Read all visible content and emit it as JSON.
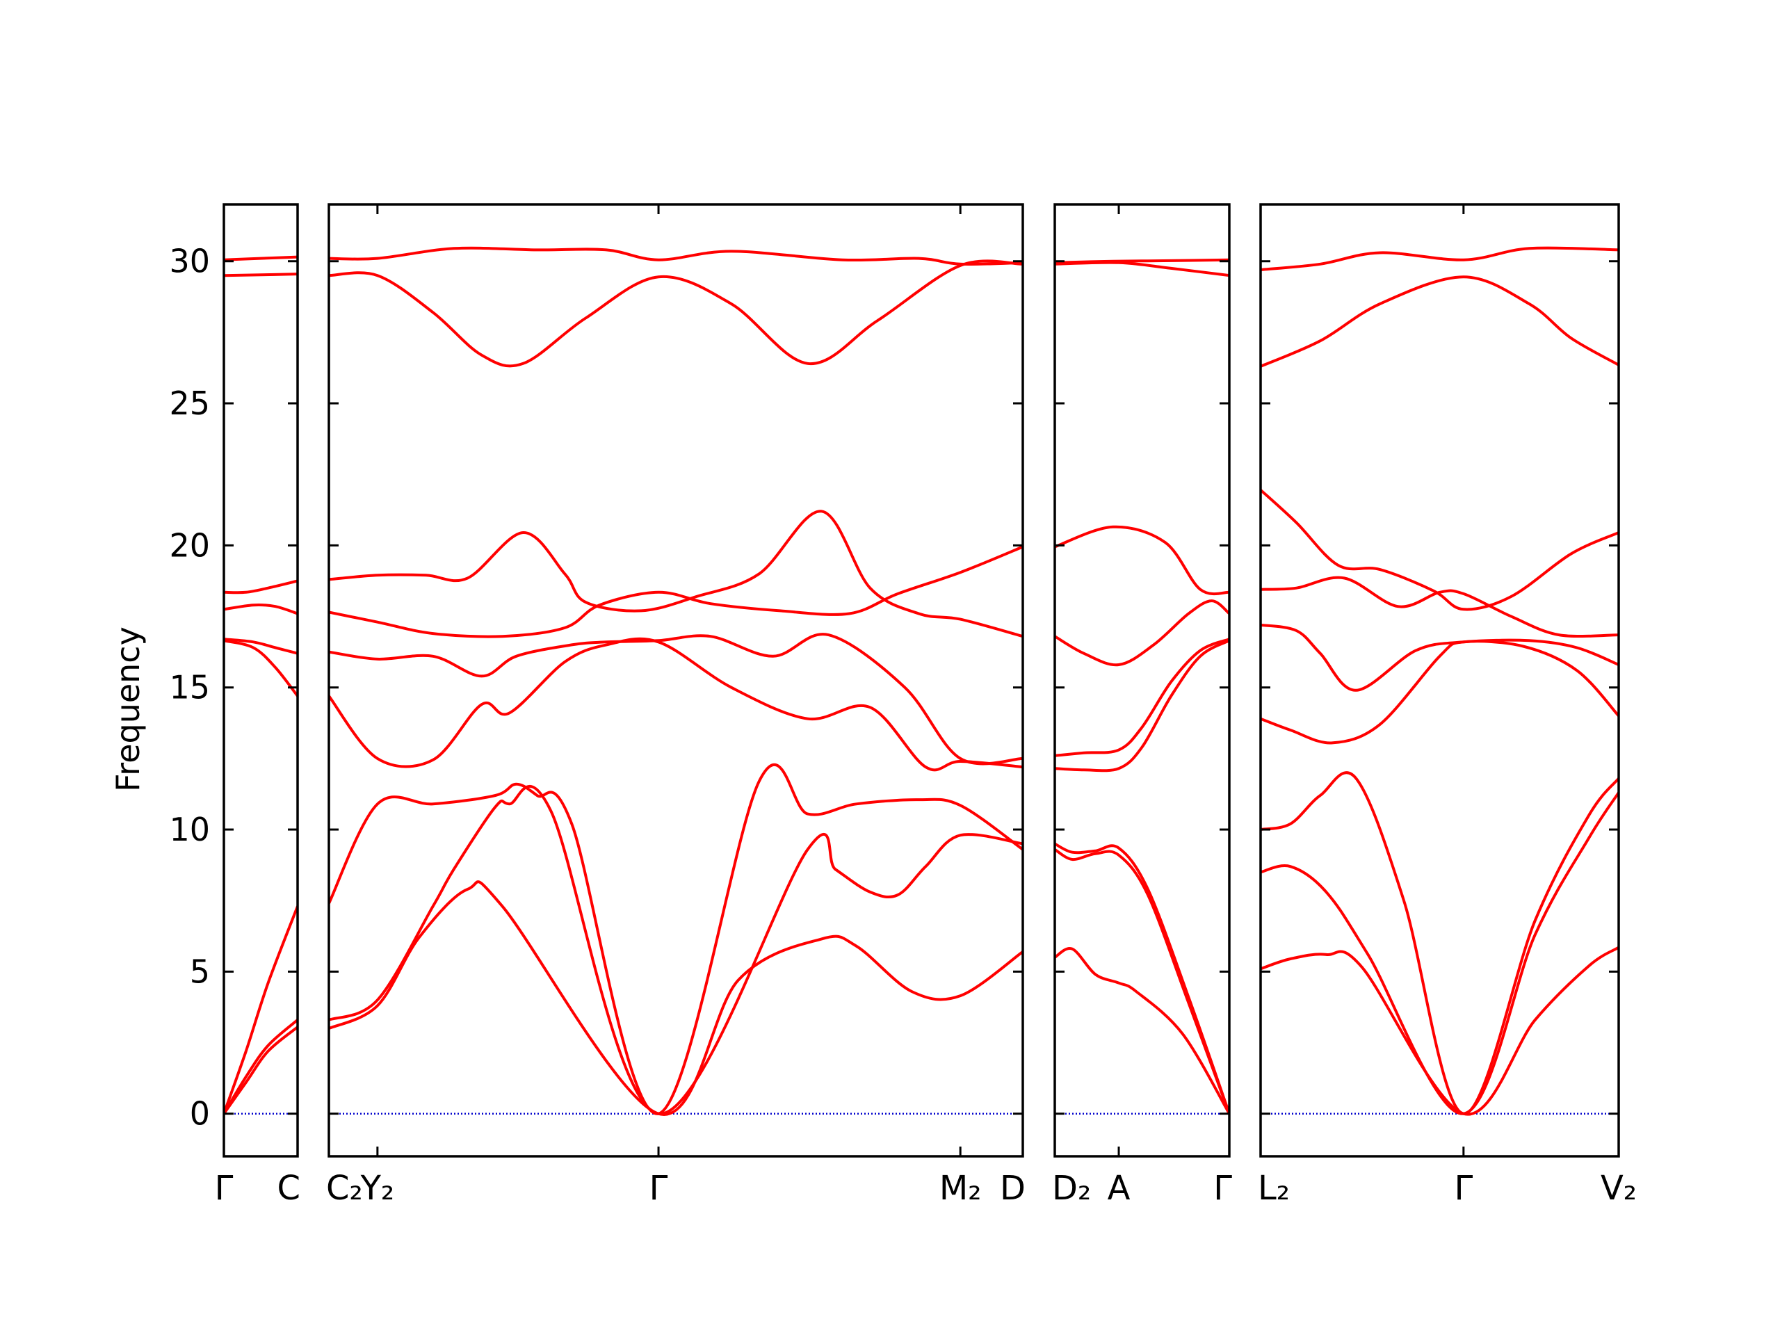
{
  "colors": {
    "band": "#ff0000",
    "zero_line": "#0000cc",
    "axes": "#000000"
  },
  "chart_data": {
    "type": "line",
    "title": "",
    "xlabel": "",
    "ylabel": "Frequency",
    "ylim": [
      -1.5,
      32
    ],
    "yticks": [
      0,
      5,
      10,
      15,
      20,
      25,
      30
    ],
    "grid": false,
    "legend": "none",
    "segments": [
      {
        "xlim": [
          0,
          1
        ],
        "kpoints": [
          {
            "x": 0,
            "label": "Γ"
          },
          {
            "x": 1,
            "label": "C"
          }
        ],
        "series": [
          {
            "x": [
              0,
              0.5,
              1
            ],
            "y": [
              30.05,
              30.1,
              30.15
            ]
          },
          {
            "x": [
              0,
              0.5,
              1
            ],
            "y": [
              29.5,
              29.52,
              29.55
            ]
          },
          {
            "x": [
              0,
              0.3,
              0.6,
              1
            ],
            "y": [
              18.35,
              18.35,
              18.5,
              18.75
            ]
          },
          {
            "x": [
              0,
              0.4,
              0.7,
              1
            ],
            "y": [
              17.75,
              17.9,
              17.85,
              17.6
            ]
          },
          {
            "x": [
              0,
              0.4,
              0.7,
              1
            ],
            "y": [
              16.7,
              16.6,
              16.4,
              16.2
            ]
          },
          {
            "x": [
              0,
              0.4,
              0.7,
              1
            ],
            "y": [
              16.65,
              16.4,
              15.7,
              14.7
            ]
          },
          {
            "x": [
              0,
              0.3,
              0.6,
              1
            ],
            "y": [
              0,
              2.2,
              4.6,
              7.3
            ]
          },
          {
            "x": [
              0,
              0.3,
              0.6,
              1
            ],
            "y": [
              0,
              1.3,
              2.4,
              3.3
            ]
          },
          {
            "x": [
              0,
              0.3,
              0.6,
              1
            ],
            "y": [
              0,
              1.1,
              2.2,
              3.05
            ]
          }
        ]
      },
      {
        "xlim": [
          0,
          10
        ],
        "kpoints": [
          {
            "x": 0,
            "label": "C₂"
          },
          {
            "x": 0.7,
            "label": "Y₂"
          },
          {
            "x": 4.75,
            "label": "Γ"
          },
          {
            "x": 9.1,
            "label": "M₂"
          },
          {
            "x": 10,
            "label": "D"
          }
        ],
        "series": [
          {
            "x": [
              0,
              0.7,
              1.8,
              3,
              4,
              4.75,
              5.8,
              7.4,
              8.5,
              9.1,
              10
            ],
            "y": [
              30.1,
              30.1,
              30.45,
              30.4,
              30.4,
              30.05,
              30.35,
              30.05,
              30.1,
              29.9,
              29.95
            ]
          },
          {
            "x": [
              0,
              0.7,
              1.5,
              2.2,
              2.8,
              3.7,
              4.75,
              5.8,
              6.9,
              7.9,
              9.1,
              10
            ],
            "y": [
              29.5,
              29.5,
              28.2,
              26.7,
              26.4,
              28,
              29.45,
              28.5,
              26.4,
              27.9,
              29.85,
              29.9
            ]
          },
          {
            "x": [
              0,
              0.7,
              1.4,
              2,
              2.8,
              3.4,
              3.7,
              4.5,
              5.3,
              6.2,
              7.1,
              7.8,
              8.5,
              9.1,
              10
            ],
            "y": [
              18.8,
              18.95,
              18.95,
              18.85,
              20.45,
              19,
              18,
              17.7,
              18.2,
              19,
              21.2,
              18.5,
              17.6,
              17.4,
              16.8
            ]
          },
          {
            "x": [
              0,
              0.7,
              1.5,
              2.5,
              3.4,
              3.9,
              4.75,
              5.5,
              6.5,
              7.5,
              8.2,
              9.1,
              10
            ],
            "y": [
              17.65,
              17.3,
              16.9,
              16.8,
              17.1,
              17.9,
              18.35,
              17.95,
              17.7,
              17.6,
              18.3,
              19.05,
              19.95
            ]
          },
          {
            "x": [
              0,
              0.7,
              1.5,
              2.2,
              2.7,
              3.5,
              4,
              4.75,
              5.5,
              6.4,
              7.2,
              8.3,
              9.1,
              10
            ],
            "y": [
              16.25,
              16,
              16.1,
              15.4,
              16.1,
              16.5,
              16.6,
              16.65,
              16.8,
              16.1,
              16.85,
              15,
              12.5,
              12.5
            ]
          },
          {
            "x": [
              0,
              0.7,
              1.5,
              2.2,
              2.6,
              3.4,
              4,
              4.75,
              5.8,
              6.9,
              7.8,
              8.6,
              9.1,
              10
            ],
            "y": [
              14.7,
              12.5,
              12.45,
              14.4,
              14.1,
              15.9,
              16.5,
              16.6,
              15,
              13.9,
              14.3,
              12.2,
              12.4,
              12.2
            ]
          },
          {
            "x": [
              0,
              0.7,
              1.5,
              2.4,
              2.7,
              3,
              3.5,
              4.75,
              6.2,
              6.9,
              7.6,
              8.5,
              9.1,
              10
            ],
            "y": [
              7.4,
              10.9,
              10.9,
              11.2,
              11.6,
              11.2,
              10.2,
              0,
              11.7,
              10.55,
              10.9,
              11.05,
              10.85,
              9.3
            ]
          },
          {
            "x": [
              0,
              0.7,
              1.5,
              1.8,
              2.4,
              2.6,
              3.2,
              4.75,
              6.9,
              7.3,
              7.8,
              8.2,
              8.6,
              9.1,
              10
            ],
            "y": [
              3.3,
              4.0,
              7.3,
              8.6,
              10.8,
              10.9,
              10.65,
              0,
              9.3,
              8.6,
              7.8,
              7.7,
              8.7,
              9.8,
              9.5
            ]
          },
          {
            "x": [
              0,
              0.7,
              1.3,
              2,
              2.5,
              4.75,
              5.9,
              7.1,
              7.6,
              8.4,
              9.1,
              10
            ],
            "y": [
              3.0,
              3.8,
              6.2,
              7.9,
              7.3,
              0,
              4.7,
              6.15,
              5.9,
              4.3,
              4.15,
              5.7
            ]
          }
        ]
      },
      {
        "xlim": [
          0,
          3
        ],
        "kpoints": [
          {
            "x": 0,
            "label": "D₂"
          },
          {
            "x": 1.1,
            "label": "A"
          },
          {
            "x": 3,
            "label": "Γ"
          }
        ],
        "series": [
          {
            "x": [
              0,
              1,
              2,
              3
            ],
            "y": [
              29.95,
              30,
              30.02,
              30.05
            ]
          },
          {
            "x": [
              0,
              1.1,
              2,
              3
            ],
            "y": [
              29.9,
              29.95,
              29.75,
              29.5
            ]
          },
          {
            "x": [
              0,
              1,
              1.9,
              2.5,
              3
            ],
            "y": [
              19.95,
              20.65,
              20.1,
              18.45,
              18.35
            ]
          },
          {
            "x": [
              0,
              0.5,
              1.1,
              1.7,
              2.3,
              2.7,
              3
            ],
            "y": [
              16.8,
              16.2,
              15.8,
              16.5,
              17.6,
              18.05,
              17.6
            ]
          },
          {
            "x": [
              0,
              0.5,
              1.1,
              1.5,
              2,
              2.5,
              3
            ],
            "y": [
              12.6,
              12.7,
              12.8,
              13.6,
              15.2,
              16.3,
              16.7
            ]
          },
          {
            "x": [
              0,
              0.5,
              1.1,
              1.5,
              2,
              2.5,
              3
            ],
            "y": [
              12.15,
              12.1,
              12.15,
              12.9,
              14.7,
              16.1,
              16.65
            ]
          },
          {
            "x": [
              0,
              0.3,
              0.7,
              1.1,
              1.6,
              2.3,
              3
            ],
            "y": [
              9.5,
              9.2,
              9.25,
              9.35,
              7.9,
              4.1,
              0
            ]
          },
          {
            "x": [
              0,
              0.3,
              0.7,
              1.1,
              1.6,
              2.3,
              3
            ],
            "y": [
              9.3,
              8.95,
              9.15,
              9.1,
              7.7,
              3.9,
              0
            ]
          },
          {
            "x": [
              0,
              0.3,
              0.7,
              1.1,
              1.4,
              2.2,
              3
            ],
            "y": [
              5.5,
              5.8,
              4.9,
              4.6,
              4.3,
              2.8,
              0
            ]
          }
        ]
      },
      {
        "xlim": [
          0,
          6
        ],
        "kpoints": [
          {
            "x": 0,
            "label": "L₂"
          },
          {
            "x": 3.4,
            "label": "Γ"
          },
          {
            "x": 6,
            "label": "V₂"
          }
        ],
        "series": [
          {
            "x": [
              0,
              1,
              2,
              3.4,
              4.5,
              6
            ],
            "y": [
              29.7,
              29.9,
              30.3,
              30.05,
              30.45,
              30.4
            ]
          },
          {
            "x": [
              0,
              1,
              2,
              3.4,
              4.5,
              5.2,
              6
            ],
            "y": [
              26.3,
              27.2,
              28.5,
              29.45,
              28.5,
              27.3,
              26.35
            ]
          },
          {
            "x": [
              0,
              0.6,
              1.3,
              2,
              2.9,
              3.4,
              4.2,
              5.2,
              6
            ],
            "y": [
              21.95,
              20.8,
              19.3,
              19.15,
              18.4,
              17.75,
              18.2,
              19.7,
              20.45
            ]
          },
          {
            "x": [
              0,
              0.6,
              1.4,
              2.3,
              3,
              3.4,
              4.2,
              5,
              6
            ],
            "y": [
              18.45,
              18.5,
              18.85,
              17.85,
              18.35,
              18.3,
              17.5,
              16.85,
              16.85
            ]
          },
          {
            "x": [
              0,
              0.6,
              1,
              1.6,
              2.6,
              3.4,
              4.5,
              5.3,
              6
            ],
            "y": [
              17.2,
              17,
              16.2,
              14.9,
              16.3,
              16.6,
              16.65,
              16.4,
              15.8
            ]
          },
          {
            "x": [
              0,
              0.5,
              1.2,
              2,
              3,
              3.4,
              4.4,
              5.3,
              6
            ],
            "y": [
              13.9,
              13.5,
              13.05,
              13.7,
              16.1,
              16.6,
              16.45,
              15.6,
              14.0
            ]
          },
          {
            "x": [
              0,
              0.5,
              1,
              1.6,
              2.4,
              3.4,
              4.6,
              5.5,
              6
            ],
            "y": [
              10,
              10.2,
              11.2,
              11.8,
              7.5,
              0,
              6.8,
              10.5,
              11.8
            ]
          },
          {
            "x": [
              0,
              0.5,
              1.1,
              1.8,
              3.4,
              4.6,
              5.5,
              6
            ],
            "y": [
              8.5,
              8.7,
              7.8,
              5.6,
              0,
              6.3,
              9.7,
              11.3
            ]
          },
          {
            "x": [
              0,
              0.5,
              1.1,
              1.7,
              3.4,
              4.6,
              5.5,
              6
            ],
            "y": [
              5.1,
              5.45,
              5.6,
              5.15,
              0,
              3.3,
              5.2,
              5.85
            ]
          }
        ]
      }
    ]
  }
}
